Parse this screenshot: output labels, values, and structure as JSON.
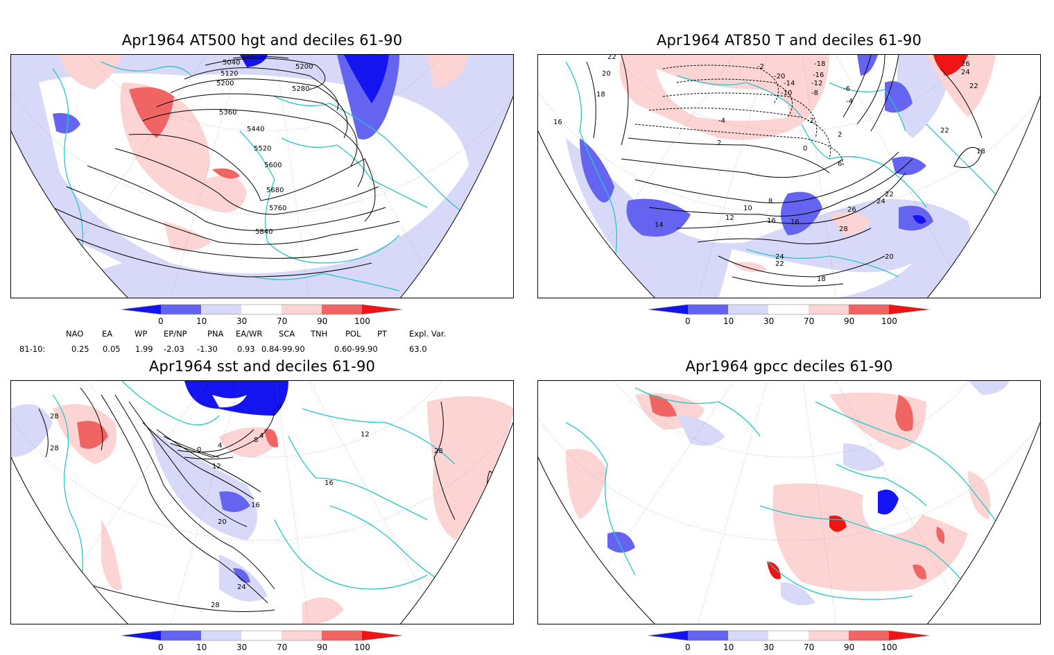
{
  "panels": [
    {
      "title": "Apr1964 AT500 hgt and deciles 61-90",
      "contour_labels": [
        "5040",
        "5120",
        "5200",
        "5200",
        "5280",
        "5360",
        "5440",
        "5520",
        "5600",
        "5680",
        "5760",
        "5840"
      ]
    },
    {
      "title": "Apr1964 AT850 T and deciles 61-90",
      "contour_labels": [
        "22",
        "20",
        "18",
        "16",
        "-2",
        "-18",
        "-16",
        "-20",
        "-14",
        "-12",
        "-10",
        "-8",
        "-6",
        "-4",
        "-4",
        "-2",
        "0",
        "2",
        "2",
        "6",
        "22",
        "26",
        "24",
        "22",
        "18",
        "16",
        "14",
        "12",
        "10",
        "8",
        "16",
        "22",
        "24",
        "26",
        "28",
        "24",
        "22",
        "20",
        "18"
      ]
    },
    {
      "title": "Apr1964 sst and deciles 61-90",
      "contour_labels": [
        "28",
        "28",
        "0",
        "4",
        "8",
        "0",
        "4",
        "12",
        "16",
        "20",
        "24",
        "28",
        "16",
        "12",
        "28"
      ]
    },
    {
      "title": "Apr1964 gpcc deciles 61-90",
      "contour_labels": []
    }
  ],
  "colorbar": {
    "ticks": [
      "0",
      "10",
      "30",
      "70",
      "90",
      "100"
    ],
    "colors": [
      "#1414f0",
      "#6464f0",
      "#d8d8f8",
      "#ffffff",
      "#fcd4d4",
      "#f06464",
      "#f01414"
    ]
  },
  "indices": {
    "headers": [
      "NAO",
      "EA",
      "WP",
      "EP/NP",
      "PNA",
      "EA/WR",
      "SCA",
      "TNH",
      "POL",
      "PT",
      "Expl. Var."
    ],
    "row_label": "81-10:",
    "values": [
      "0.25",
      "0.05",
      "1.99",
      "-2.03",
      "-1.30",
      "0.93",
      "0.84-99.90",
      "0.60-99.90",
      "63.0"
    ]
  }
}
